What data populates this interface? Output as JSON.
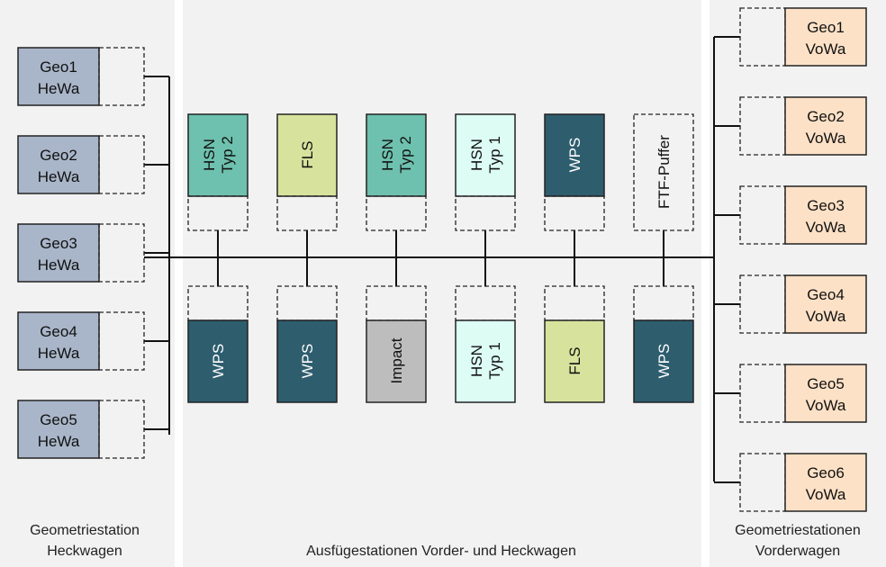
{
  "colors": {
    "geo_heck": "#a9b6c9",
    "geo_vorder": "#fde1c6",
    "hsn_typ2": "#6ec1ae",
    "hsn_typ1": "#dcfcf4",
    "fls": "#d7e39d",
    "wps": "#2e5d6e",
    "impact": "#bdbdbd",
    "panel": "#f2f2f2"
  },
  "captions": {
    "left": [
      "Geometriestation",
      "Heckwagen"
    ],
    "center": "Ausfügestationen Vorder- und Heckwagen",
    "right": [
      "Geometriestationen",
      "Vorderwagen"
    ]
  },
  "left_stations": [
    {
      "line1": "Geo1",
      "line2": "HeWa"
    },
    {
      "line1": "Geo2",
      "line2": "HeWa"
    },
    {
      "line1": "Geo3",
      "line2": "HeWa"
    },
    {
      "line1": "Geo4",
      "line2": "HeWa"
    },
    {
      "line1": "Geo5",
      "line2": "HeWa"
    }
  ],
  "right_stations": [
    {
      "line1": "Geo1",
      "line2": "VoWa"
    },
    {
      "line1": "Geo2",
      "line2": "VoWa"
    },
    {
      "line1": "Geo3",
      "line2": "VoWa"
    },
    {
      "line1": "Geo4",
      "line2": "VoWa"
    },
    {
      "line1": "Geo5",
      "line2": "VoWa"
    },
    {
      "line1": "Geo6",
      "line2": "VoWa"
    }
  ],
  "top_stations": [
    {
      "lines": [
        "HSN",
        "Typ 2"
      ],
      "kind": "hsn_typ2"
    },
    {
      "lines": [
        "FLS"
      ],
      "kind": "fls"
    },
    {
      "lines": [
        "HSN",
        "Typ 2"
      ],
      "kind": "hsn_typ2"
    },
    {
      "lines": [
        "HSN",
        "Typ 1"
      ],
      "kind": "hsn_typ1"
    },
    {
      "lines": [
        "WPS"
      ],
      "kind": "wps"
    },
    {
      "lines": [
        "FTF-Puffer"
      ],
      "kind": "buffer"
    }
  ],
  "bottom_stations": [
    {
      "lines": [
        "WPS"
      ],
      "kind": "wps"
    },
    {
      "lines": [
        "WPS"
      ],
      "kind": "wps"
    },
    {
      "lines": [
        "Impact"
      ],
      "kind": "impact"
    },
    {
      "lines": [
        "HSN",
        "Typ 1"
      ],
      "kind": "hsn_typ1"
    },
    {
      "lines": [
        "FLS"
      ],
      "kind": "fls"
    },
    {
      "lines": [
        "WPS"
      ],
      "kind": "wps"
    }
  ]
}
